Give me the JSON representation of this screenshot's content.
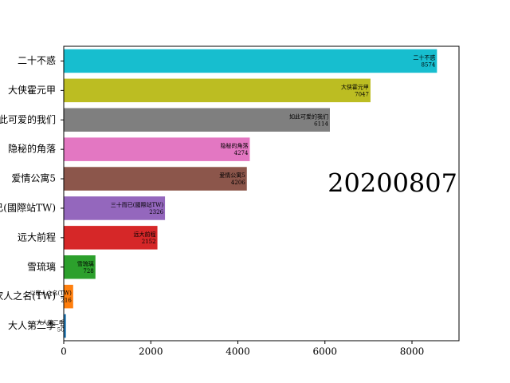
{
  "chart_data": {
    "type": "barh",
    "annotation": "20200807",
    "categories": [
      "二十不惑",
      "大侠霍元甲",
      "如此可爱的我们",
      "隐秘的角落",
      "爱情公寓5",
      "三十而已(國際站TW)",
      "远大前程",
      "雪琉璃",
      "以家人之名(TW)",
      "大人第二季"
    ],
    "values": [
      8574,
      7047,
      6114,
      4274,
      4206,
      2326,
      2152,
      728,
      216,
      50
    ],
    "colors": [
      "#17becf",
      "#bcbd22",
      "#7f7f7f",
      "#e377c2",
      "#8c564b",
      "#9467bd",
      "#d62728",
      "#2ca02c",
      "#ff7f0e",
      "#1f77b4"
    ],
    "xlim": [
      0,
      9080
    ],
    "xticks": [
      0,
      2000,
      4000,
      6000,
      8000
    ],
    "grid": false
  }
}
